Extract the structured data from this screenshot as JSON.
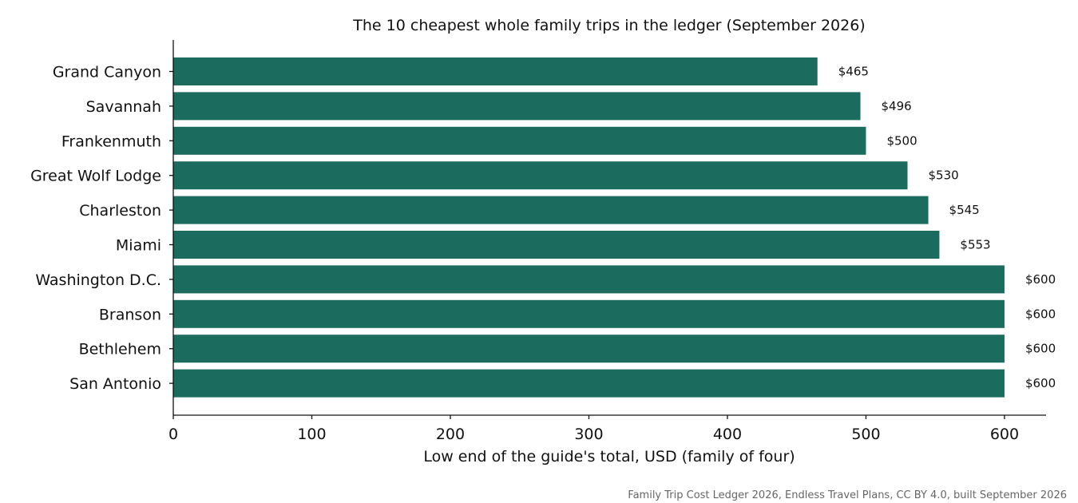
{
  "chart_data": {
    "type": "bar",
    "orientation": "horizontal",
    "title": "The 10 cheapest whole family trips in the ledger (September 2026)",
    "xlabel": "Low end of the guide's total, USD (family of four)",
    "ylabel": "",
    "categories": [
      "Grand Canyon",
      "Savannah",
      "Frankenmuth",
      "Great Wolf Lodge",
      "Charleston",
      "Miami",
      "Washington D.C.",
      "Branson",
      "Bethlehem",
      "San Antonio"
    ],
    "values": [
      465,
      496,
      500,
      530,
      545,
      553,
      600,
      600,
      600,
      600
    ],
    "data_labels": [
      "$465",
      "$496",
      "$500",
      "$530",
      "$545",
      "$553",
      "$600",
      "$600",
      "$600",
      "$600"
    ],
    "xlim": [
      0,
      630
    ],
    "xticks": [
      0,
      100,
      200,
      300,
      400,
      500,
      600
    ],
    "xtick_labels": [
      "0",
      "100",
      "200",
      "300",
      "400",
      "500",
      "600"
    ],
    "grid": false,
    "legend": "none",
    "bar_color": "#1b6b5e",
    "source": "Family Trip Cost Ledger 2026, Endless Travel Plans, CC BY 4.0, built September 2026"
  }
}
